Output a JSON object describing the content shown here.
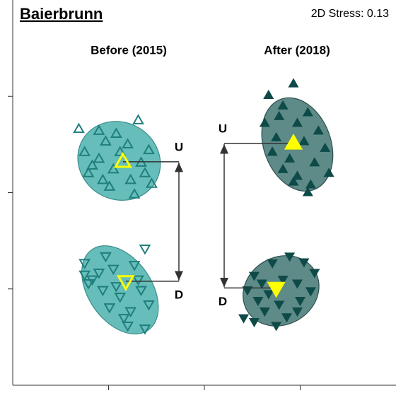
{
  "chart_data": {
    "type": "scatter",
    "title": "Baierbrunn",
    "stress_label": "2D Stress: 0.13",
    "xlim": [
      -2,
      2
    ],
    "ylim": [
      -2,
      2
    ],
    "xticks": [
      -1,
      0,
      1
    ],
    "yticks": [
      -1,
      0,
      1
    ],
    "panels": [
      {
        "title": "Before (2015)",
        "color": "#1f7f7c",
        "ellipse_color": "#66bdb9",
        "filled": false,
        "clusters": [
          {
            "label": "U",
            "marker": "up",
            "x": [
              -1.31,
              -1.1,
              -0.69,
              -1.03,
              -1.25,
              -0.8,
              -0.58,
              -1.17,
              -0.95,
              -0.66,
              -1.06,
              -0.77,
              -0.55,
              -0.99,
              -0.73,
              -1.21,
              -0.88,
              -0.62,
              -0.92,
              -1.1
            ],
            "y": [
              0.66,
              0.64,
              0.75,
              0.53,
              0.42,
              0.5,
              0.44,
              0.28,
              0.24,
              0.31,
              0.13,
              0.13,
              0.09,
              0.06,
              -0.02,
              0.2,
              0.42,
              0.2,
              0.61,
              0.35
            ],
            "centroid": {
              "x": -0.85,
              "y": 0.32
            },
            "ellipse": {
              "cx": -0.89,
              "cy": 0.33,
              "rx": 0.44,
              "ry": 0.4,
              "angle": 30
            }
          },
          {
            "label": "D",
            "marker": "down",
            "x": [
              -1.25,
              -1.03,
              -0.62,
              -1.17,
              -0.95,
              -0.73,
              -1.21,
              -1.06,
              -0.88,
              -0.66,
              -0.99,
              -0.77,
              -0.58,
              -0.8,
              -0.62,
              -1.1,
              -0.92,
              -0.69,
              -0.84,
              -1.25
            ],
            "y": [
              -0.73,
              -0.66,
              -0.58,
              -0.9,
              -0.79,
              -0.75,
              -0.94,
              -1.01,
              -1.08,
              -1.01,
              -1.19,
              -1.23,
              -1.16,
              -1.38,
              -1.41,
              -0.83,
              -0.97,
              -0.9,
              -1.3,
              -0.85
            ],
            "centroid": {
              "x": -0.82,
              "y": -0.92
            },
            "ellipse": {
              "cx": -0.88,
              "cy": -1.01,
              "rx": 0.33,
              "ry": 0.51,
              "angle": -35
            }
          }
        ]
      },
      {
        "title": "After (2018)",
        "color": "#0e4a48",
        "ellipse_color": "#5e8a88",
        "filled": true,
        "clusters": [
          {
            "label": "U",
            "marker": "up",
            "x": [
              0.93,
              0.67,
              0.82,
              1.08,
              0.63,
              0.97,
              1.19,
              0.75,
              1.04,
              1.26,
              0.71,
              0.89,
              1.15,
              0.82,
              1.3,
              0.97,
              1.11,
              0.93,
              0.78,
              1.08
            ],
            "y": [
              1.13,
              1.01,
              0.9,
              0.83,
              0.72,
              0.72,
              0.64,
              0.57,
              0.53,
              0.46,
              0.42,
              0.35,
              0.31,
              0.24,
              0.2,
              0.17,
              0.08,
              0.11,
              0.79,
              0.0
            ],
            "centroid": {
              "x": 0.93,
              "y": 0.51
            },
            "ellipse": {
              "cx": 0.97,
              "cy": 0.5,
              "rx": 0.35,
              "ry": 0.5,
              "angle": -20
            }
          },
          {
            "label": "D",
            "marker": "down",
            "x": [
              0.89,
              1.04,
              0.71,
              0.52,
              1.15,
              0.82,
              0.97,
              0.45,
              0.67,
              1.11,
              0.56,
              0.78,
              1.0,
              0.41,
              0.63,
              0.86,
              0.52,
              0.75,
              0.97,
              0.6
            ],
            "y": [
              -0.66,
              -0.72,
              -0.73,
              -0.86,
              -0.83,
              -0.9,
              -0.94,
              -1.01,
              -1.05,
              -1.02,
              -1.12,
              -1.16,
              -1.12,
              -1.3,
              -1.23,
              -1.29,
              -1.34,
              -1.38,
              -1.23,
              -0.94
            ],
            "centroid": {
              "x": 0.75,
              "y": -0.99
            },
            "ellipse": {
              "cx": 0.8,
              "cy": -1.02,
              "rx": 0.41,
              "ry": 0.35,
              "angle": -30
            }
          }
        ]
      }
    ],
    "centroid_color": "#ffff00"
  }
}
